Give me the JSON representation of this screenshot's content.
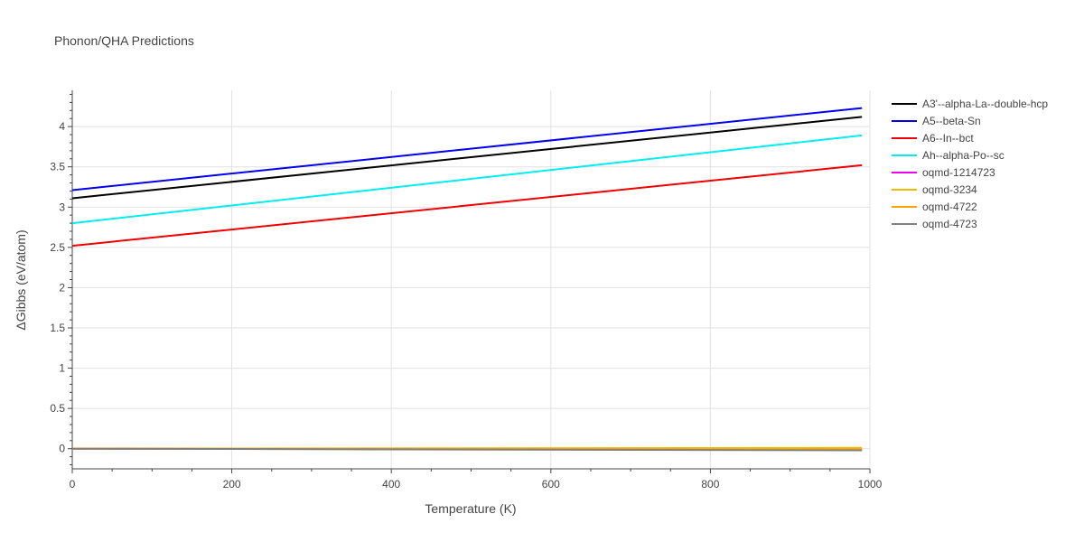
{
  "chart_data": {
    "type": "line",
    "title": "Phonon/QHA Predictions",
    "xlabel": "Temperature (K)",
    "ylabel": "ΔGibbs (eV/atom)",
    "xlim": [
      0,
      1000
    ],
    "ylim": [
      -0.25,
      4.45
    ],
    "x_ticks": [
      0,
      200,
      400,
      600,
      800,
      1000
    ],
    "x_tick_labels": [
      "0",
      "200",
      "400",
      "600",
      "800",
      "1000"
    ],
    "y_ticks": [
      0,
      0.5,
      1,
      1.5,
      2,
      2.5,
      3,
      3.5,
      4
    ],
    "y_tick_labels": [
      "0",
      "0.5",
      "1",
      "1.5",
      "2",
      "2.5",
      "3",
      "3.5",
      "4"
    ],
    "grid": true,
    "legend_position": "right",
    "series": [
      {
        "name": "A3'--alpha-La--double-hcp",
        "color": "#000000",
        "x": [
          0,
          990
        ],
        "y": [
          3.11,
          4.12
        ]
      },
      {
        "name": "A5--beta-Sn",
        "color": "#0000ee",
        "x": [
          0,
          990
        ],
        "y": [
          3.21,
          4.23
        ]
      },
      {
        "name": "A6--In--bct",
        "color": "#ee0000",
        "x": [
          0,
          990
        ],
        "y": [
          2.52,
          3.52
        ]
      },
      {
        "name": "Ah--alpha-Po--sc",
        "color": "#00eeee",
        "x": [
          0,
          990
        ],
        "y": [
          2.8,
          3.89
        ]
      },
      {
        "name": "oqmd-1214723",
        "color": "#ee00ee",
        "x": [
          0,
          990
        ],
        "y": [
          0.0,
          -0.01
        ]
      },
      {
        "name": "oqmd-3234",
        "color": "#eebb00",
        "x": [
          0,
          990
        ],
        "y": [
          0.0,
          0.01
        ]
      },
      {
        "name": "oqmd-4722",
        "color": "#ffa500",
        "x": [
          0,
          990
        ],
        "y": [
          0.0,
          -0.005
        ]
      },
      {
        "name": "oqmd-4723",
        "color": "#808080",
        "x": [
          0,
          990
        ],
        "y": [
          0.0,
          -0.02
        ]
      }
    ]
  }
}
